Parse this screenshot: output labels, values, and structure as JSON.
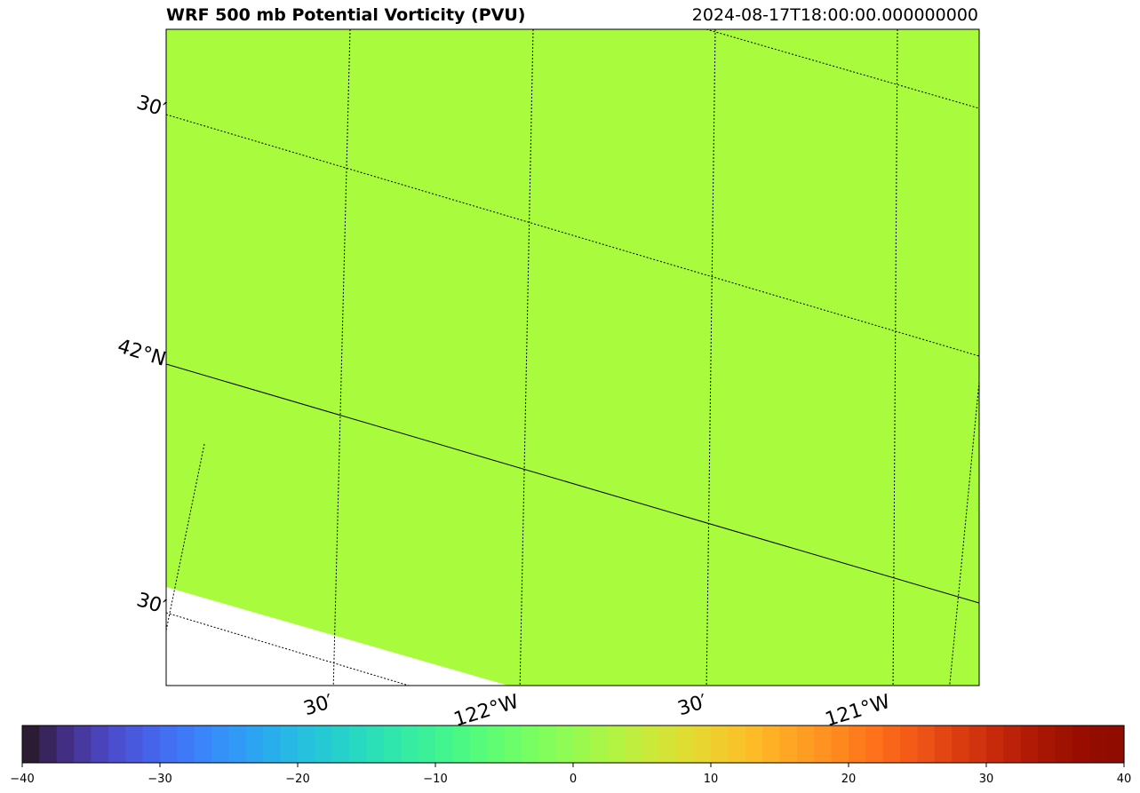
{
  "chart_data": {
    "type": "heatmap",
    "title": "WRF 500 mb Potential Vorticity (PVU)",
    "timestamp": "2024-08-17T18:00:00.000000000",
    "field_value": 0,
    "field_color": "#a9fb3d",
    "gridline_labels": {
      "latitude": [
        "30′",
        "42°N",
        "30′"
      ],
      "longitude": [
        "30′",
        "122°W",
        "30′",
        "121°W"
      ]
    },
    "colorbar": {
      "range": [
        -40,
        40
      ],
      "ticks": [
        -40,
        -30,
        -20,
        -10,
        0,
        10,
        20,
        30,
        40
      ],
      "tick_labels": [
        "−40",
        "−30",
        "−20",
        "−10",
        "0",
        "10",
        "20",
        "30",
        "40"
      ],
      "colormap": "turbo"
    }
  }
}
